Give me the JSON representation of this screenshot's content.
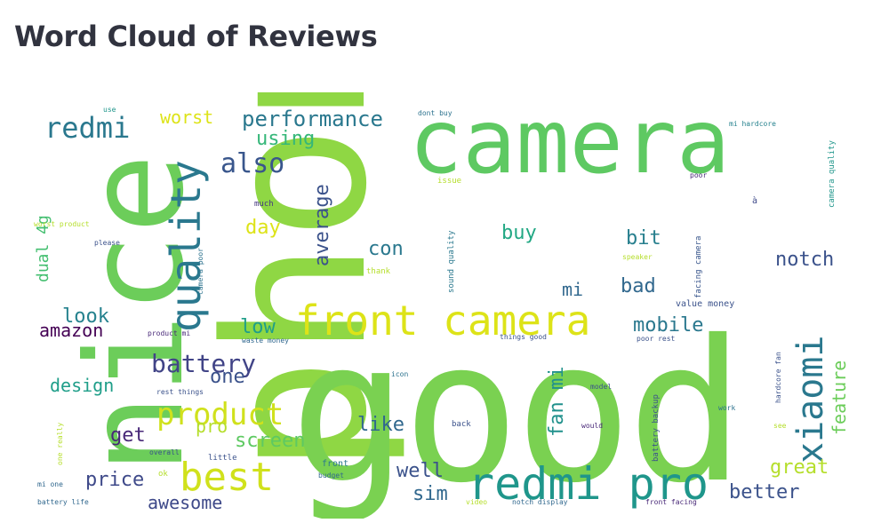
{
  "title": "Word Cloud of Reviews",
  "words": [
    {
      "text": "phone",
      "color": "#8fd744"
    },
    {
      "text": "good",
      "color": "#7ad151"
    },
    {
      "text": "nice",
      "color": "#6ccd5a"
    },
    {
      "text": "camera",
      "color": "#5ec962"
    },
    {
      "text": "front camera",
      "color": "#dde318"
    },
    {
      "text": "redmi pro",
      "color": "#1f968b"
    },
    {
      "text": "quality",
      "color": "#2a788e"
    },
    {
      "text": "best",
      "color": "#d0e11c"
    },
    {
      "text": "xiaomi",
      "color": "#2a788e"
    },
    {
      "text": "product",
      "color": "#d0e11c"
    },
    {
      "text": "battery",
      "color": "#414487"
    },
    {
      "text": "redmi",
      "color": "#2a788e"
    },
    {
      "text": "performance",
      "color": "#2a788e"
    },
    {
      "text": "also",
      "color": "#39568c"
    },
    {
      "text": "worst",
      "color": "#dde318"
    },
    {
      "text": "using",
      "color": "#35b779"
    },
    {
      "text": "average",
      "color": "#3b528b"
    },
    {
      "text": "day",
      "color": "#dde318"
    },
    {
      "text": "buy",
      "color": "#22a884"
    },
    {
      "text": "bit",
      "color": "#277f8e"
    },
    {
      "text": "con",
      "color": "#2a788e"
    },
    {
      "text": "notch",
      "color": "#3b528b"
    },
    {
      "text": "mi",
      "color": "#31688e"
    },
    {
      "text": "bad",
      "color": "#31688e"
    },
    {
      "text": "mobile",
      "color": "#2a788e"
    },
    {
      "text": "low",
      "color": "#1f9e89"
    },
    {
      "text": "look",
      "color": "#26828e"
    },
    {
      "text": "amazon",
      "color": "#440154"
    },
    {
      "text": "dual 4g",
      "color": "#44bf70"
    },
    {
      "text": "design",
      "color": "#1f9e89"
    },
    {
      "text": "one",
      "color": "#3b528b"
    },
    {
      "text": "pro",
      "color": "#b5de2b"
    },
    {
      "text": "get",
      "color": "#482878"
    },
    {
      "text": "screen",
      "color": "#5ec962"
    },
    {
      "text": "like",
      "color": "#31688e"
    },
    {
      "text": "fan mi",
      "color": "#21918c"
    },
    {
      "text": "feature",
      "color": "#6ccd5a"
    },
    {
      "text": "great",
      "color": "#b5de2b"
    },
    {
      "text": "better",
      "color": "#3b528b"
    },
    {
      "text": "well",
      "color": "#3b528b"
    },
    {
      "text": "price",
      "color": "#3e4989"
    },
    {
      "text": "awesome",
      "color": "#3e4989"
    },
    {
      "text": "sim",
      "color": "#31688e"
    },
    {
      "text": "use",
      "color": "#1f968b"
    },
    {
      "text": "dont buy",
      "color": "#2c728e"
    },
    {
      "text": "mi hardcore",
      "color": "#26828e"
    },
    {
      "text": "issue",
      "color": "#b5de2b"
    },
    {
      "text": "camera quality",
      "color": "#1f968b"
    },
    {
      "text": "poor",
      "color": "#482878"
    },
    {
      "text": "much",
      "color": "#453781"
    },
    {
      "text": "worst product",
      "color": "#b5de2b"
    },
    {
      "text": "please",
      "color": "#3b528b"
    },
    {
      "text": "camera poor",
      "color": "#2c728e"
    },
    {
      "text": "thank",
      "color": "#b5de2b"
    },
    {
      "text": "sound quality",
      "color": "#2a788e"
    },
    {
      "text": "speaker",
      "color": "#b5de2b"
    },
    {
      "text": "facing camera",
      "color": "#39568c"
    },
    {
      "text": "à",
      "color": "#3e4989"
    },
    {
      "text": "value money",
      "color": "#3b528b"
    },
    {
      "text": "product mi",
      "color": "#482878"
    },
    {
      "text": "waste money",
      "color": "#31688e"
    },
    {
      "text": "things good",
      "color": "#3b528b"
    },
    {
      "text": "poor rest",
      "color": "#3b528b"
    },
    {
      "text": "hardcore fan",
      "color": "#3b528b"
    },
    {
      "text": "rest things",
      "color": "#3b528b"
    },
    {
      "text": "icon",
      "color": "#2c728e"
    },
    {
      "text": "model",
      "color": "#3b528b"
    },
    {
      "text": "battery backup",
      "color": "#3b528b"
    },
    {
      "text": "work",
      "color": "#2c728e"
    },
    {
      "text": "one really",
      "color": "#b5de2b"
    },
    {
      "text": "overall",
      "color": "#3b528b"
    },
    {
      "text": "little",
      "color": "#3b528b"
    },
    {
      "text": "back",
      "color": "#3b528b"
    },
    {
      "text": "would",
      "color": "#482878"
    },
    {
      "text": "see",
      "color": "#b5de2b"
    },
    {
      "text": "ok",
      "color": "#b5de2b"
    },
    {
      "text": "front",
      "color": "#2a788e"
    },
    {
      "text": "budget",
      "color": "#31688e"
    },
    {
      "text": "mi one",
      "color": "#31688e"
    },
    {
      "text": "battery life",
      "color": "#31688e"
    },
    {
      "text": "video",
      "color": "#b5de2b"
    },
    {
      "text": "notch display",
      "color": "#31688e"
    },
    {
      "text": "front facing",
      "color": "#482878"
    }
  ]
}
